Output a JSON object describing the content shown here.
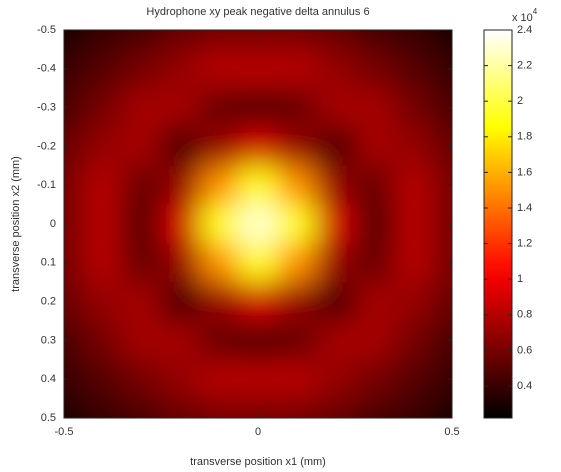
{
  "chart_data": {
    "type": "heatmap",
    "title": "Hydrophone xy peak negative delta annulus 6",
    "xlabel": "transverse position x1 (mm)",
    "ylabel": "transverse position x2 (mm)",
    "x": [
      -0.5,
      -0.4,
      -0.3,
      -0.2,
      -0.1,
      0,
      0.1,
      0.2,
      0.3,
      0.4,
      0.5
    ],
    "y": [
      -0.5,
      -0.4,
      -0.3,
      -0.2,
      -0.1,
      0,
      0.1,
      0.2,
      0.3,
      0.4,
      0.5
    ],
    "z": [
      [
        0.3,
        0.4,
        0.45,
        0.55,
        0.6,
        0.6,
        0.6,
        0.55,
        0.45,
        0.4,
        0.3
      ],
      [
        0.4,
        0.5,
        0.6,
        0.7,
        0.8,
        0.8,
        0.8,
        0.7,
        0.6,
        0.5,
        0.4
      ],
      [
        0.45,
        0.6,
        0.75,
        0.75,
        0.55,
        0.5,
        0.55,
        0.75,
        0.75,
        0.6,
        0.45
      ],
      [
        0.55,
        0.7,
        0.75,
        0.45,
        0.7,
        0.9,
        0.7,
        0.45,
        0.75,
        0.7,
        0.55
      ],
      [
        0.6,
        0.8,
        0.55,
        0.7,
        1.5,
        1.9,
        1.5,
        0.7,
        0.55,
        0.8,
        0.6
      ],
      [
        0.6,
        0.8,
        0.5,
        0.9,
        1.9,
        2.3,
        1.9,
        0.9,
        0.5,
        0.8,
        0.6
      ],
      [
        0.6,
        0.8,
        0.55,
        0.7,
        1.5,
        1.9,
        1.5,
        0.7,
        0.55,
        0.8,
        0.6
      ],
      [
        0.55,
        0.7,
        0.75,
        0.45,
        0.7,
        0.9,
        0.7,
        0.45,
        0.75,
        0.7,
        0.55
      ],
      [
        0.45,
        0.6,
        0.75,
        0.75,
        0.55,
        0.5,
        0.55,
        0.75,
        0.75,
        0.6,
        0.45
      ],
      [
        0.4,
        0.5,
        0.6,
        0.7,
        0.8,
        0.8,
        0.8,
        0.7,
        0.6,
        0.5,
        0.4
      ],
      [
        0.3,
        0.4,
        0.45,
        0.55,
        0.6,
        0.6,
        0.6,
        0.55,
        0.45,
        0.4,
        0.3
      ]
    ],
    "xlim": [
      -0.5,
      0.5
    ],
    "xticks": [
      -0.5,
      0,
      0.5
    ],
    "ylim": [
      -0.5,
      0.5
    ],
    "y_reversed": true,
    "yticks": [
      -0.5,
      -0.4,
      -0.3,
      -0.2,
      -0.1,
      0,
      0.1,
      0.2,
      0.3,
      0.4,
      0.5
    ],
    "colormap": "hot",
    "clim": [
      0.22,
      2.4
    ],
    "cticks": [
      0.4,
      0.6,
      0.8,
      1,
      1.2,
      1.4,
      1.6,
      1.8,
      2,
      2.2,
      2.4
    ],
    "colorbar_multiplier": {
      "base": "x 10",
      "exponent": "4"
    }
  }
}
